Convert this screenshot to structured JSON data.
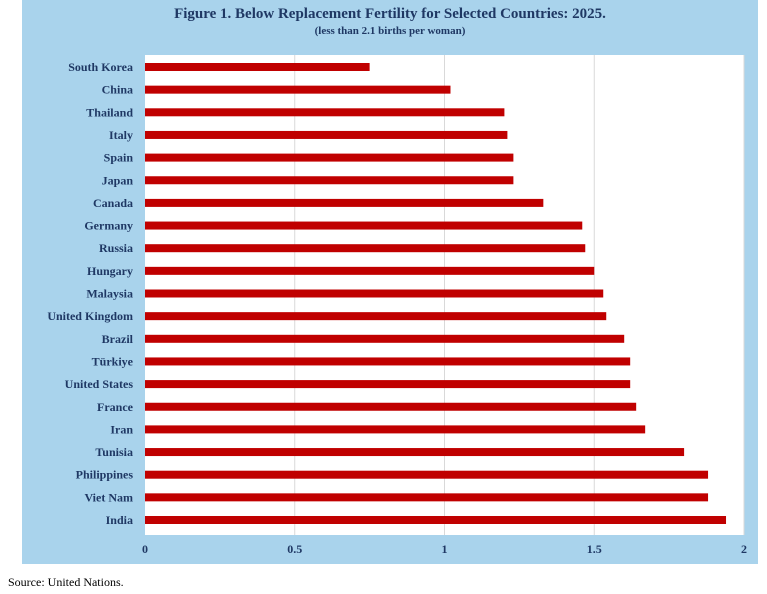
{
  "page": {
    "source": "Source: United Nations."
  },
  "colors": {
    "frame_background": "#a9d3ec",
    "plot_background": "#ffffff",
    "bar": "#c00000",
    "text": "#1f3864",
    "grid": "#d9d9d9"
  },
  "chart_data": {
    "type": "bar",
    "orientation": "horizontal",
    "title": "Figure 1. Below Replacement Fertility for Selected Countries: 2025.",
    "subtitle": "(less than 2.1 births per woman)",
    "xlabel": "",
    "ylabel": "",
    "xlim": [
      0,
      2
    ],
    "x_ticks": [
      "0",
      "0.5",
      "1",
      "1.5",
      "2"
    ],
    "x_tick_values": [
      0,
      0.5,
      1,
      1.5,
      2
    ],
    "grid": true,
    "legend": "none",
    "categories": [
      "South Korea",
      "China",
      "Thailand",
      "Italy",
      "Spain",
      "Japan",
      "Canada",
      "Germany",
      "Russia",
      "Hungary",
      "Malaysia",
      "United Kingdom",
      "Brazil",
      "Türkiye",
      "United States",
      "France",
      "Iran",
      "Tunisia",
      "Philippines",
      "Viet Nam",
      "India"
    ],
    "values": [
      0.75,
      1.02,
      1.2,
      1.21,
      1.23,
      1.23,
      1.33,
      1.46,
      1.47,
      1.5,
      1.53,
      1.54,
      1.6,
      1.62,
      1.62,
      1.64,
      1.67,
      1.8,
      1.88,
      1.88,
      1.94
    ]
  }
}
